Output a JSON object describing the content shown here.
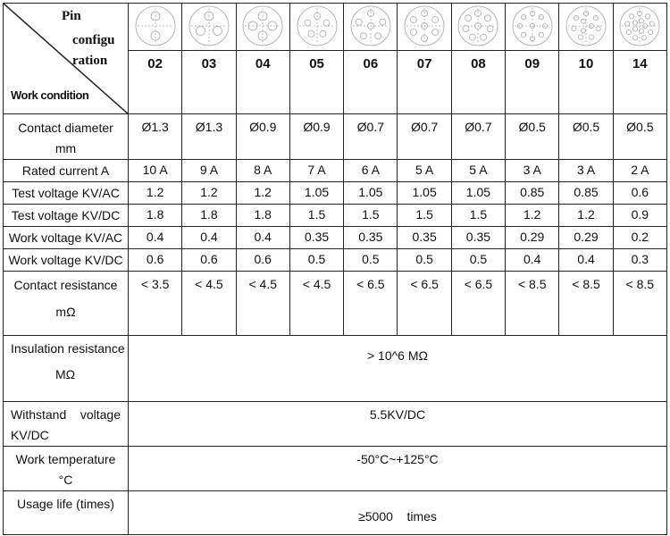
{
  "header": {
    "pin_label_1": "Pin",
    "pin_label_2": "configu",
    "pin_label_3": "ration",
    "work_condition": "Work condition"
  },
  "pins": [
    {
      "label": "02",
      "count": 2
    },
    {
      "label": "03",
      "count": 3
    },
    {
      "label": "04",
      "count": 4
    },
    {
      "label": "05",
      "count": 5
    },
    {
      "label": "06",
      "count": 6
    },
    {
      "label": "07",
      "count": 7
    },
    {
      "label": "08",
      "count": 8
    },
    {
      "label": "09",
      "count": 9
    },
    {
      "label": "10",
      "count": 10
    },
    {
      "label": "14",
      "count": 14
    }
  ],
  "rows": [
    {
      "label": "Contact diameter",
      "label2": "mm",
      "values": [
        "Ø1.3",
        "Ø1.3",
        "Ø0.9",
        "Ø0.9",
        "Ø0.7",
        "Ø0.7",
        "Ø0.7",
        "Ø0.5",
        "Ø0.5",
        "Ø0.5"
      ]
    },
    {
      "label": "Rated current A",
      "values": [
        "10 A",
        "9 A",
        "8 A",
        "7 A",
        "6 A",
        "5 A",
        "5 A",
        "3 A",
        "3 A",
        "2 A"
      ]
    },
    {
      "label": "Test voltage KV/AC",
      "values": [
        "1.2",
        "1.2",
        "1.2",
        "1.05",
        "1.05",
        "1.05",
        "1.05",
        "0.85",
        "0.85",
        "0.6"
      ]
    },
    {
      "label": "Test voltage KV/DC",
      "values": [
        "1.8",
        "1.8",
        "1.8",
        "1.5",
        "1.5",
        "1.5",
        "1.5",
        "1.2",
        "1.2",
        "0.9"
      ]
    },
    {
      "label": "Work voltage KV/AC",
      "values": [
        "0.4",
        "0.4",
        "0.4",
        "0.35",
        "0.35",
        "0.35",
        "0.35",
        "0.29",
        "0.29",
        "0.2"
      ]
    },
    {
      "label": "Work voltage KV/DC",
      "values": [
        "0.6",
        "0.6",
        "0.6",
        "0.5",
        "0.5",
        "0.5",
        "0.5",
        "0.4",
        "0.4",
        "0.3"
      ]
    },
    {
      "label": "Contact resistance",
      "label2": "mΩ",
      "values": [
        "< 3.5",
        "< 4.5",
        "< 4.5",
        "< 4.5",
        "< 6.5",
        "< 6.5",
        "< 6.5",
        "< 8.5",
        "< 8.5",
        "< 8.5"
      ]
    }
  ],
  "span_rows": [
    {
      "label": "Insulation resistance",
      "label2": "MΩ",
      "value": "> 10^6 MΩ"
    },
    {
      "label": "Withstand    voltage",
      "label2": "KV/DC",
      "value": "5.5KV/DC"
    },
    {
      "label": "Work temperature",
      "label2": "°C",
      "value": "-50°C~+125°C"
    },
    {
      "label": "Usage life (times)",
      "label2": "",
      "value": "≥5000    times"
    }
  ]
}
